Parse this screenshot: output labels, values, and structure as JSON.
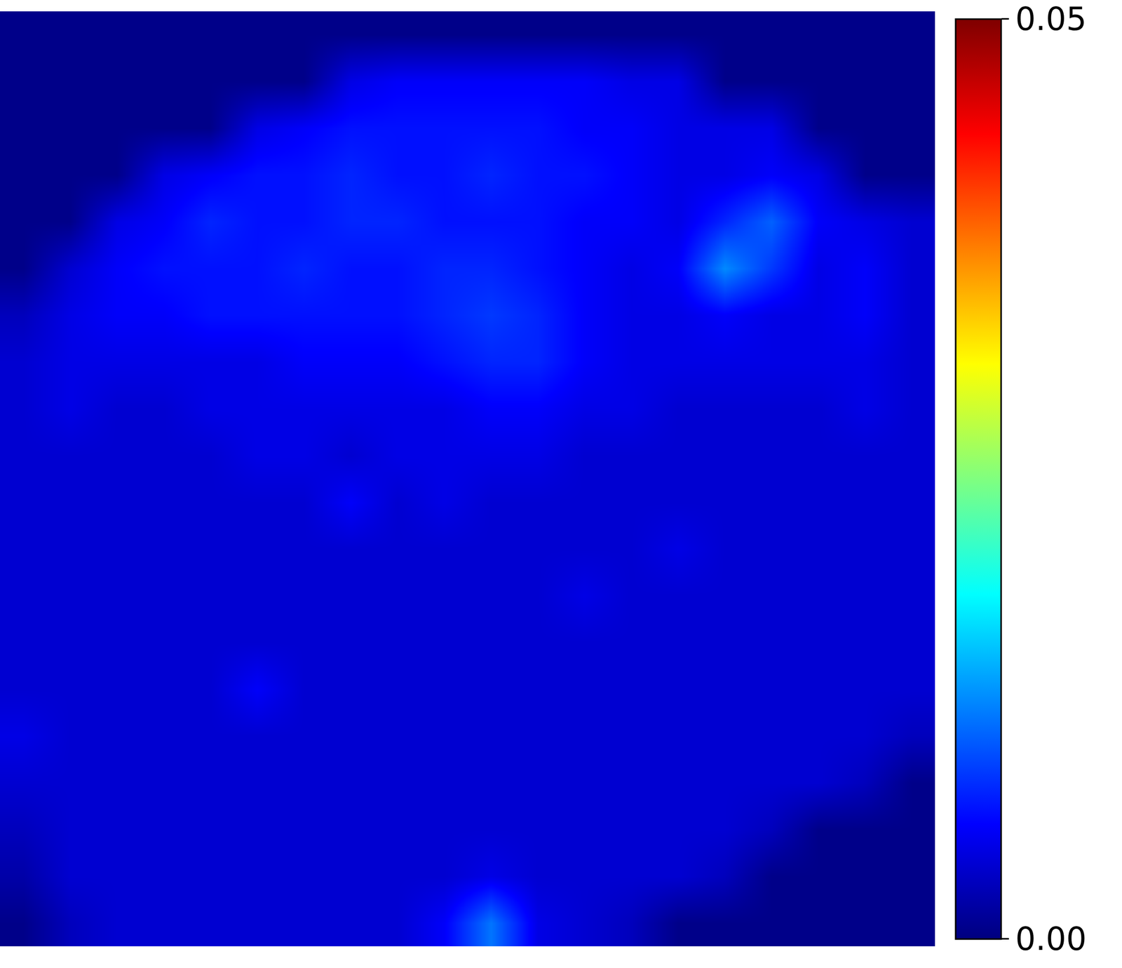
{
  "chart_data": {
    "type": "heatmap",
    "color": "jet",
    "tick_labels": false,
    "grid": false,
    "colorbar": {
      "range": [
        0,
        0.05
      ],
      "ticks": [
        {
          "value": 0,
          "label": "0.00"
        },
        {
          "value": 0.05,
          "label": "0.05"
        }
      ]
    },
    "cells": [
      [
        0.0005,
        0.0005,
        0.0005,
        0.0005,
        0.0005,
        0.0005,
        0.0005,
        0.0005,
        0.0005,
        0.0005,
        0.0005,
        0.0005,
        0.0005,
        0.0005,
        0.0005,
        0.0005,
        0.0005,
        0.0005,
        0.0005,
        0.0005
      ],
      [
        0.0005,
        0.0005,
        0.0005,
        0.0005,
        0.0005,
        0.0005,
        0.0005,
        0.005,
        0.006,
        0.006,
        0.006,
        0.006,
        0.006,
        0.005,
        0.005,
        0.0005,
        0.0005,
        0.0005,
        0.0005,
        0.0005
      ],
      [
        0.0005,
        0.0005,
        0.0005,
        0.0005,
        0.0005,
        0.005,
        0.006,
        0.007,
        0.007,
        0.007,
        0.007,
        0.007,
        0.006,
        0.006,
        0.005,
        0.005,
        0.005,
        0.0005,
        0.0005,
        0.0005
      ],
      [
        0.0005,
        0.0005,
        0.0005,
        0.005,
        0.006,
        0.007,
        0.007,
        0.008,
        0.007,
        0.007,
        0.008,
        0.007,
        0.007,
        0.006,
        0.005,
        0.005,
        0.006,
        0.005,
        0.0005,
        0.0005
      ],
      [
        0.0005,
        0.0005,
        0.005,
        0.006,
        0.008,
        0.007,
        0.007,
        0.008,
        0.008,
        0.007,
        0.007,
        0.007,
        0.006,
        0.006,
        0.005,
        0.008,
        0.011,
        0.006,
        0.005,
        0.004
      ],
      [
        0.0005,
        0.004,
        0.006,
        0.007,
        0.007,
        0.007,
        0.008,
        0.007,
        0.007,
        0.008,
        0.008,
        0.007,
        0.006,
        0.005,
        0.006,
        0.013,
        0.009,
        0.005,
        0.006,
        0.004
      ],
      [
        0.003,
        0.005,
        0.006,
        0.006,
        0.007,
        0.007,
        0.007,
        0.007,
        0.007,
        0.008,
        0.009,
        0.008,
        0.006,
        0.005,
        0.005,
        0.006,
        0.005,
        0.005,
        0.006,
        0.004
      ],
      [
        0.004,
        0.005,
        0.005,
        0.005,
        0.005,
        0.005,
        0.006,
        0.006,
        0.006,
        0.007,
        0.008,
        0.008,
        0.006,
        0.005,
        0.005,
        0.005,
        0.005,
        0.005,
        0.005,
        0.004
      ],
      [
        0.004,
        0.005,
        0.004,
        0.004,
        0.005,
        0.005,
        0.005,
        0.005,
        0.005,
        0.005,
        0.006,
        0.006,
        0.005,
        0.005,
        0.004,
        0.004,
        0.004,
        0.004,
        0.005,
        0.004
      ],
      [
        0.004,
        0.004,
        0.004,
        0.004,
        0.004,
        0.005,
        0.005,
        0.004,
        0.005,
        0.005,
        0.005,
        0.005,
        0.004,
        0.004,
        0.004,
        0.004,
        0.004,
        0.004,
        0.004,
        0.004
      ],
      [
        0.004,
        0.004,
        0.004,
        0.004,
        0.004,
        0.004,
        0.004,
        0.006,
        0.004,
        0.005,
        0.004,
        0.004,
        0.004,
        0.004,
        0.004,
        0.004,
        0.004,
        0.004,
        0.004,
        0.004
      ],
      [
        0.004,
        0.004,
        0.004,
        0.004,
        0.004,
        0.004,
        0.004,
        0.004,
        0.004,
        0.004,
        0.004,
        0.004,
        0.004,
        0.004,
        0.005,
        0.004,
        0.004,
        0.004,
        0.004,
        0.004
      ],
      [
        0.004,
        0.004,
        0.004,
        0.004,
        0.004,
        0.004,
        0.004,
        0.004,
        0.004,
        0.004,
        0.004,
        0.004,
        0.005,
        0.004,
        0.004,
        0.004,
        0.004,
        0.004,
        0.004,
        0.004
      ],
      [
        0.004,
        0.004,
        0.004,
        0.004,
        0.004,
        0.004,
        0.004,
        0.004,
        0.004,
        0.004,
        0.004,
        0.004,
        0.004,
        0.004,
        0.004,
        0.004,
        0.004,
        0.004,
        0.004,
        0.004
      ],
      [
        0.004,
        0.004,
        0.004,
        0.004,
        0.004,
        0.006,
        0.004,
        0.004,
        0.004,
        0.004,
        0.004,
        0.004,
        0.004,
        0.004,
        0.004,
        0.004,
        0.004,
        0.004,
        0.004,
        0.004
      ],
      [
        0.005,
        0.004,
        0.004,
        0.004,
        0.004,
        0.004,
        0.004,
        0.004,
        0.004,
        0.004,
        0.004,
        0.004,
        0.004,
        0.004,
        0.004,
        0.004,
        0.004,
        0.004,
        0.004,
        0.003
      ],
      [
        0.004,
        0.004,
        0.004,
        0.004,
        0.004,
        0.004,
        0.004,
        0.004,
        0.004,
        0.004,
        0.004,
        0.004,
        0.004,
        0.004,
        0.004,
        0.004,
        0.004,
        0.004,
        0.003,
        0.0005
      ],
      [
        0.003,
        0.004,
        0.004,
        0.004,
        0.004,
        0.004,
        0.004,
        0.004,
        0.004,
        0.004,
        0.004,
        0.004,
        0.004,
        0.004,
        0.004,
        0.004,
        0.003,
        0.0005,
        0.0005,
        0.0005
      ],
      [
        0.002,
        0.004,
        0.004,
        0.004,
        0.004,
        0.004,
        0.004,
        0.004,
        0.004,
        0.004,
        0.005,
        0.004,
        0.004,
        0.004,
        0.004,
        0.003,
        0.0005,
        0.0005,
        0.0005,
        0.0005
      ],
      [
        0.0005,
        0.003,
        0.004,
        0.004,
        0.004,
        0.004,
        0.004,
        0.004,
        0.004,
        0.006,
        0.012,
        0.005,
        0.004,
        0.003,
        0.0005,
        0.0005,
        0.0005,
        0.0005,
        0.0005,
        0.0005
      ]
    ]
  }
}
